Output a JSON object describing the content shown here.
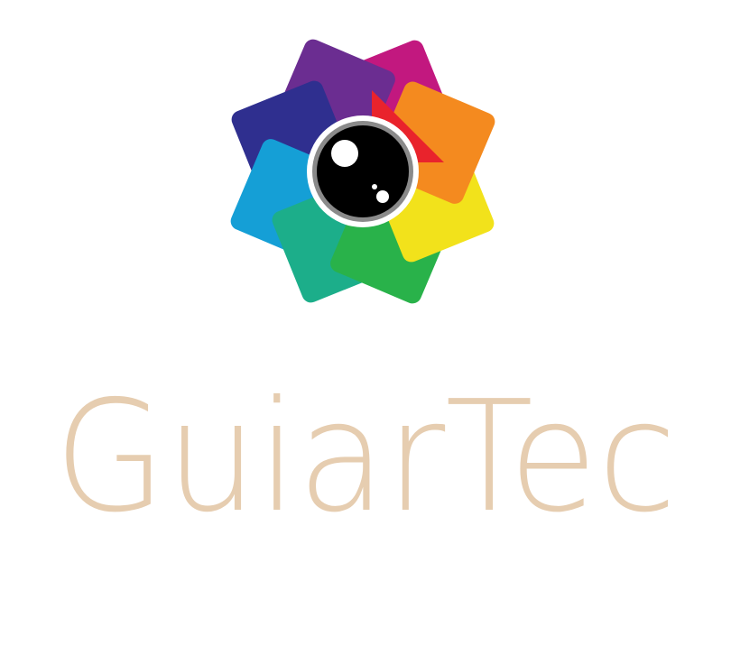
{
  "logo": {
    "text": "GuiarTec"
  }
}
